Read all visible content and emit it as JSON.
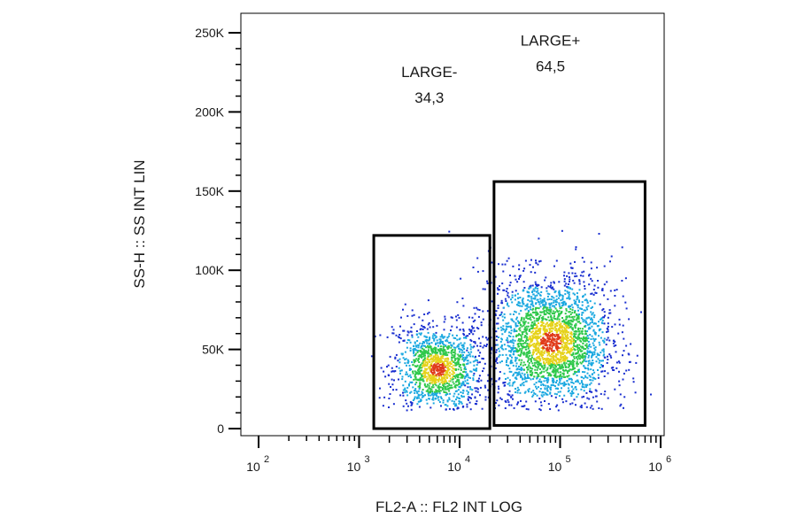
{
  "chart_data": {
    "type": "scatter",
    "subtype": "flow-cytometry-density-dot-plot",
    "xlabel": "FL2-A :: FL2 INT LOG",
    "ylabel": "SS-H :: SS INT LIN",
    "x_scale": "log",
    "x_range": [
      100,
      1000000
    ],
    "y_range": [
      0,
      260000
    ],
    "x_ticks": [
      {
        "value": 100,
        "base": "10",
        "exp": "2"
      },
      {
        "value": 1000,
        "base": "10",
        "exp": "3"
      },
      {
        "value": 10000,
        "base": "10",
        "exp": "4"
      },
      {
        "value": 100000,
        "base": "10",
        "exp": "5"
      },
      {
        "value": 1000000,
        "base": "10",
        "exp": "6"
      }
    ],
    "y_ticks": [
      {
        "value": 0,
        "label": "0"
      },
      {
        "value": 50000,
        "label": "50K"
      },
      {
        "value": 100000,
        "label": "100K"
      },
      {
        "value": 150000,
        "label": "150K"
      },
      {
        "value": 200000,
        "label": "200K"
      },
      {
        "value": 250000,
        "label": "250K"
      }
    ],
    "gates": [
      {
        "name": "LARGE-",
        "value": "34,3",
        "x": [
          1400,
          20000
        ],
        "y": [
          0,
          122000
        ],
        "label_at": [
          5000,
          222000
        ]
      },
      {
        "name": "LARGE+",
        "value": "64,5",
        "x": [
          22000,
          700000
        ],
        "y": [
          2000,
          156000
        ],
        "label_at": [
          80000,
          242000
        ]
      }
    ],
    "populations": [
      {
        "center_x": 6000,
        "center_y": 38000,
        "spread_log": 0.22,
        "spread_y": 12000,
        "count": 1400
      },
      {
        "center_x": 80000,
        "center_y": 55000,
        "spread_log": 0.3,
        "spread_y": 18000,
        "count": 2600
      }
    ],
    "density_colors": [
      "#1a2fd0",
      "#1aa8e0",
      "#2ec84a",
      "#e6d21a",
      "#e03a1a"
    ],
    "grid": false,
    "legend": "none"
  }
}
